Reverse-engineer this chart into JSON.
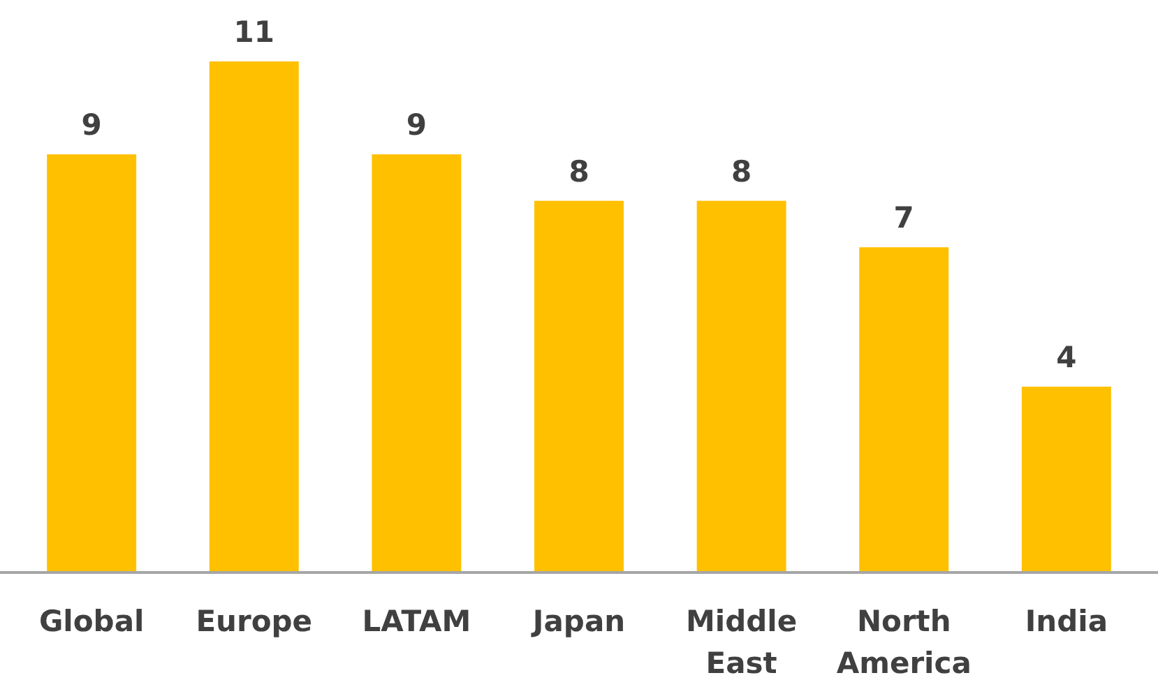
{
  "chart_data": {
    "type": "bar",
    "categories": [
      "Global",
      "Europe",
      "LATAM",
      "Japan",
      "Middle East",
      "North America",
      "India"
    ],
    "values": [
      9,
      11,
      9,
      8,
      8,
      7,
      4
    ],
    "color": "#ffc000",
    "data_labels": true
  }
}
